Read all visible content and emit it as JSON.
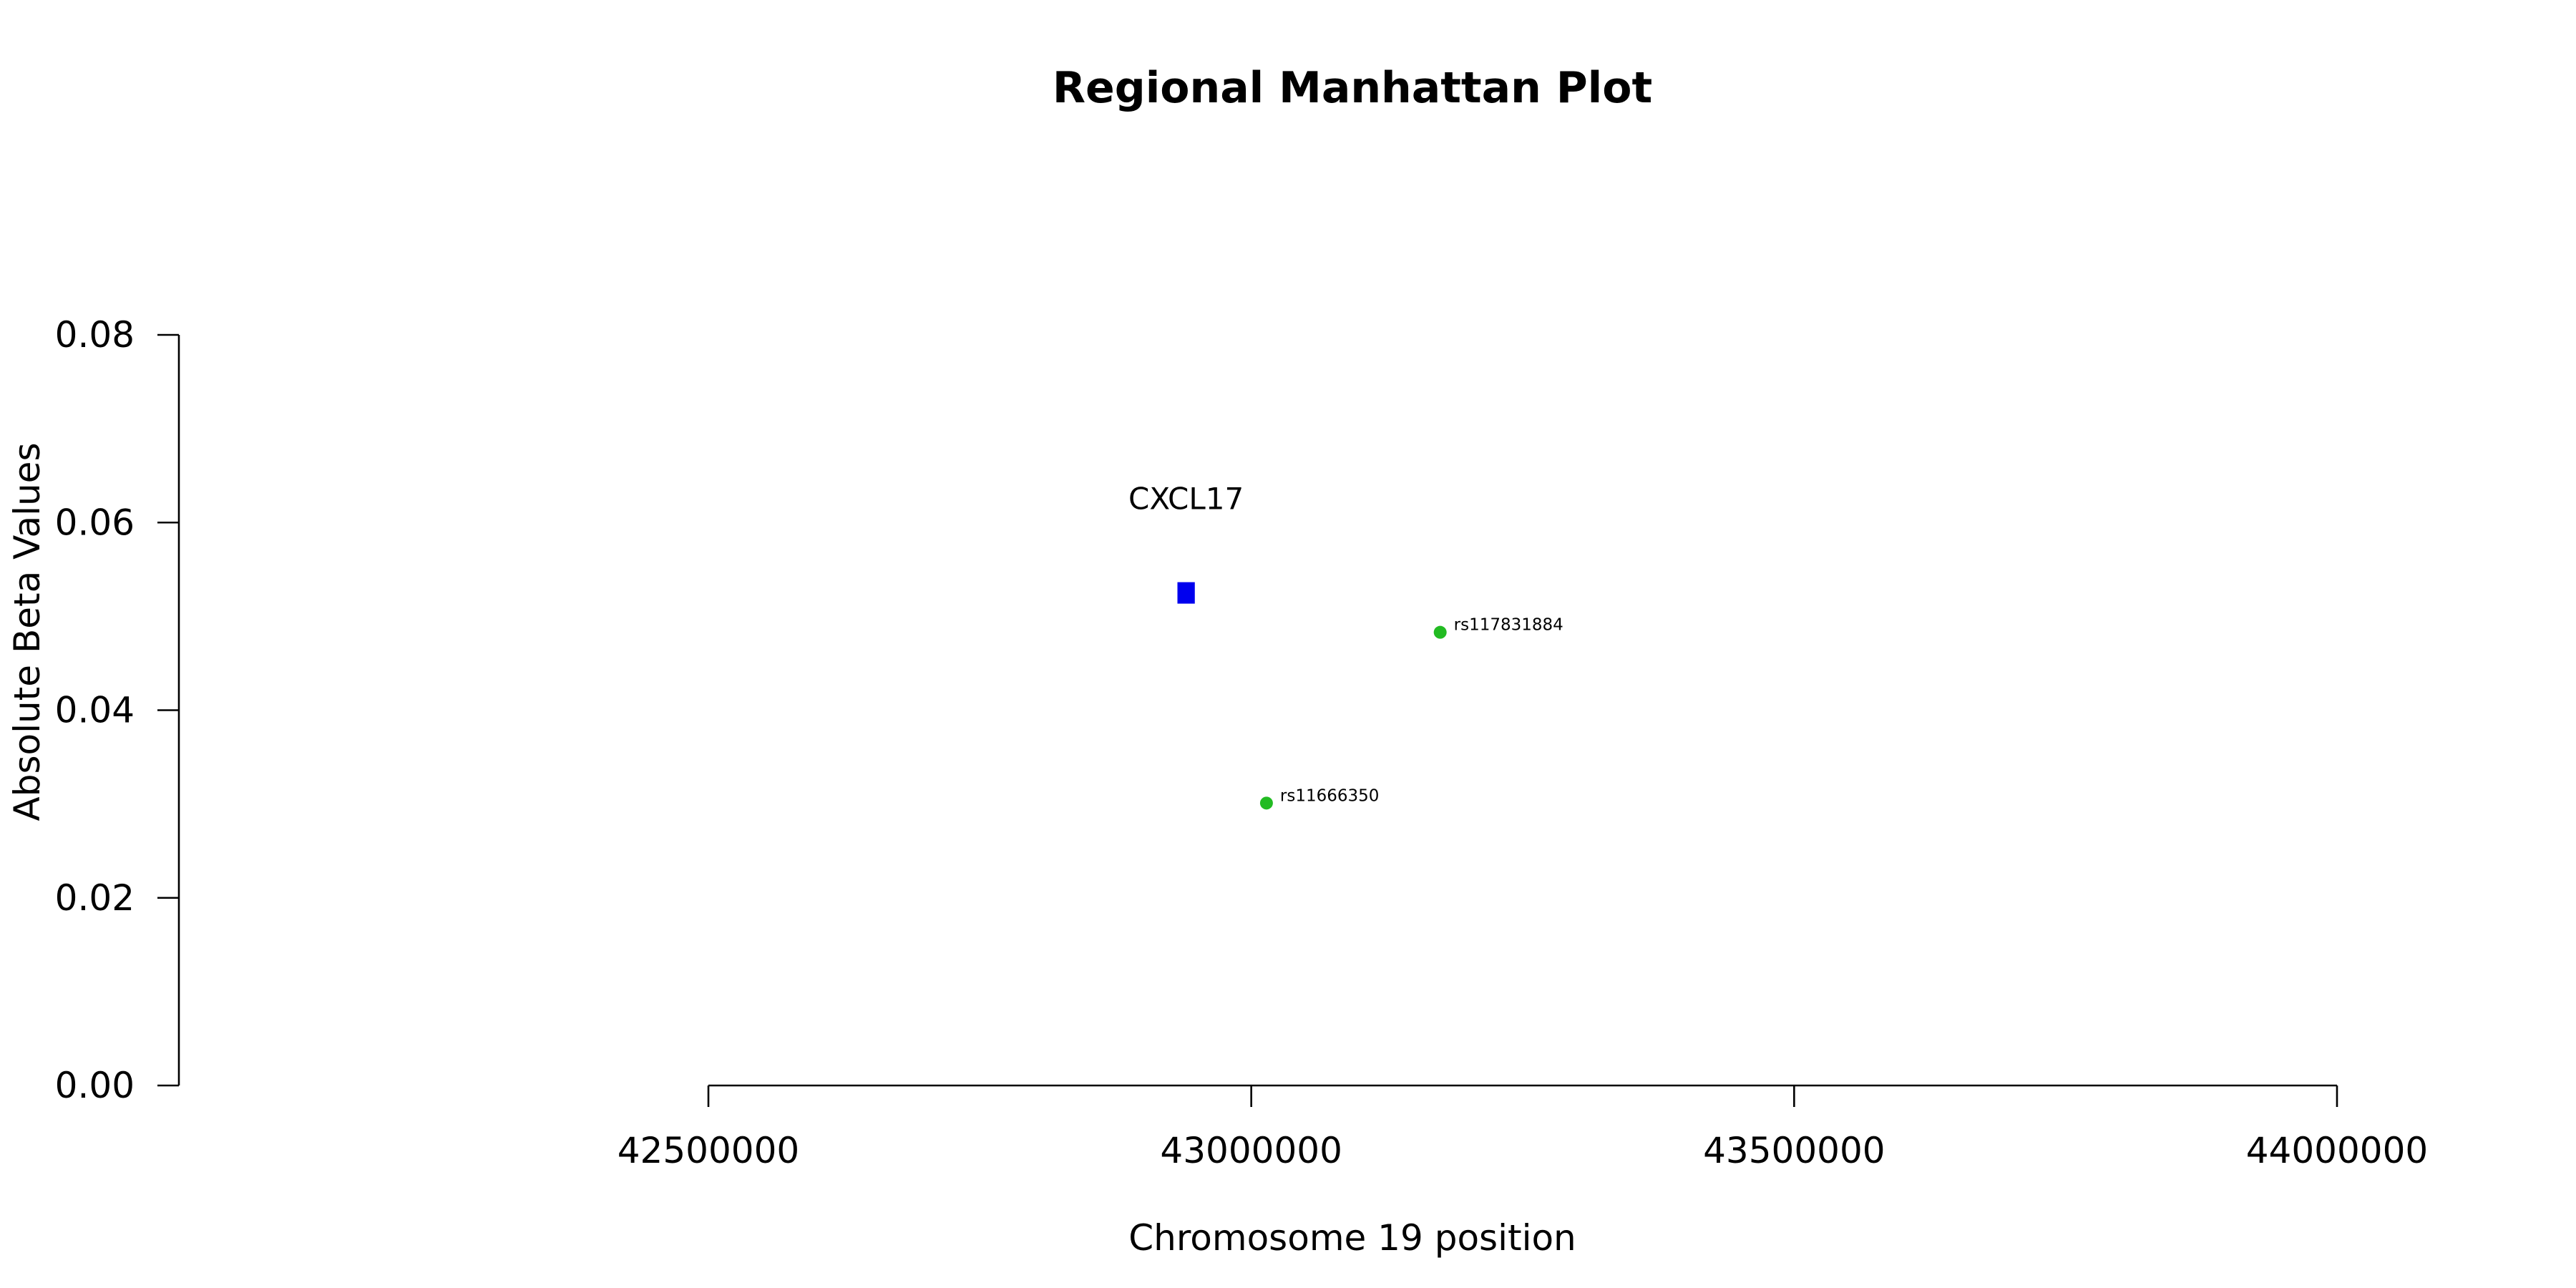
{
  "chart_data": {
    "type": "scatter",
    "title": "Regional Manhattan Plot",
    "xlabel": "Chromosome 19 position",
    "ylabel": "Absolute Beta Values",
    "xlim": [
      42500000,
      44000000
    ],
    "ylim": [
      0,
      0.08
    ],
    "x_ticks": [
      "42500000",
      "43000000",
      "43500000",
      "44000000"
    ],
    "y_ticks": [
      "0.00",
      "0.02",
      "0.04",
      "0.06",
      "0.08"
    ],
    "genes": [
      {
        "name": "CXCL17",
        "start": 42932000,
        "end": 42948000,
        "y": 0.0525,
        "color": "#0000ee"
      }
    ],
    "snps": [
      {
        "name": "rs117831884",
        "x": 43174000,
        "y": 0.0483,
        "color": "#22bb22"
      },
      {
        "name": "rs11666350",
        "x": 43014000,
        "y": 0.0301,
        "color": "#22bb22"
      }
    ]
  }
}
